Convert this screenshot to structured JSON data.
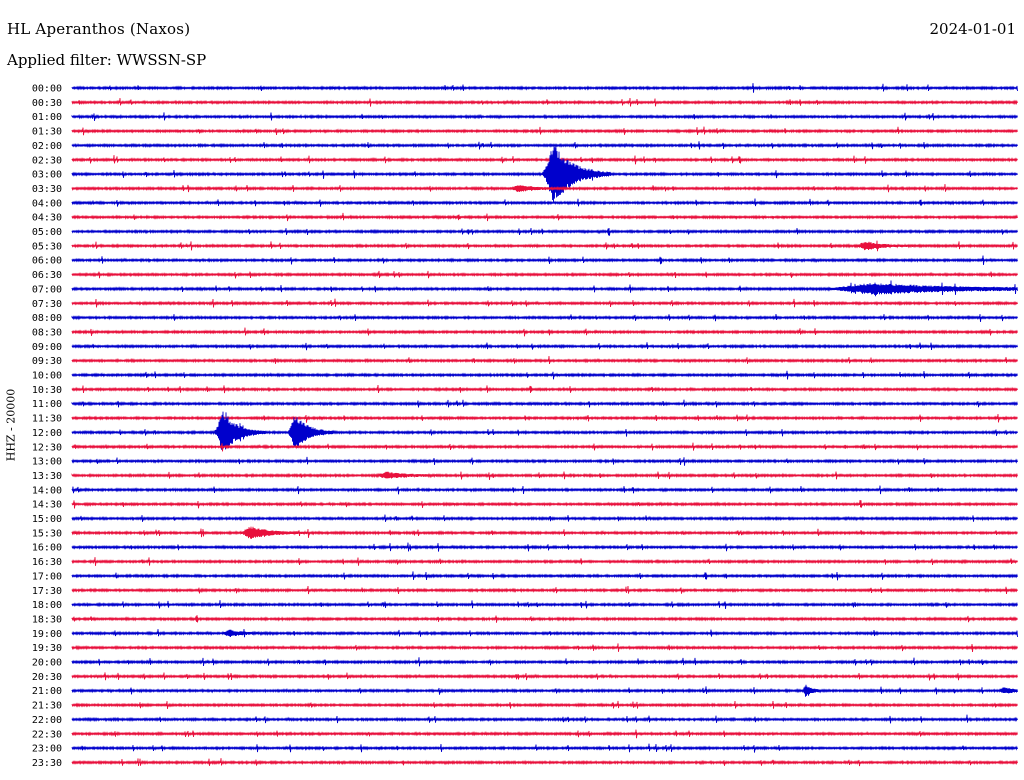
{
  "header": {
    "station": "HL Aperanthos (Naxos)",
    "filter": "Applied filter: WWSSN-SP",
    "date": "2024-01-01"
  },
  "chart_data": {
    "type": "line",
    "ylabel": "HHZ - 20000",
    "rows": [
      "00:00",
      "00:30",
      "01:00",
      "01:30",
      "02:00",
      "02:30",
      "03:00",
      "03:30",
      "04:00",
      "04:30",
      "05:00",
      "05:30",
      "06:00",
      "06:30",
      "07:00",
      "07:30",
      "08:00",
      "08:30",
      "09:00",
      "09:30",
      "10:00",
      "10:30",
      "11:00",
      "11:30",
      "12:00",
      "12:30",
      "13:00",
      "13:30",
      "14:00",
      "14:30",
      "15:00",
      "15:30",
      "16:00",
      "16:30",
      "17:00",
      "17:30",
      "18:00",
      "18:30",
      "19:00",
      "19:30",
      "20:00",
      "20:30",
      "21:00",
      "21:30",
      "22:00",
      "22:30",
      "23:00",
      "23:30"
    ],
    "colors": [
      "#0000cc",
      "#e8103c"
    ],
    "events": [
      {
        "row": "03:00",
        "minute": 15.3,
        "amplitude": 30,
        "duration_min": 1.2
      },
      {
        "row": "03:30",
        "minute": 14.2,
        "amplitude": 3,
        "duration_min": 1.0
      },
      {
        "row": "07:00",
        "minute": 25.5,
        "amplitude": 5,
        "duration_min": 6.0
      },
      {
        "row": "12:00",
        "minute": 4.8,
        "amplitude": 20,
        "duration_min": 0.9
      },
      {
        "row": "12:00",
        "minute": 7.1,
        "amplitude": 17,
        "duration_min": 0.8
      },
      {
        "row": "15:30",
        "minute": 5.7,
        "amplitude": 6,
        "duration_min": 1.2
      },
      {
        "row": "05:30",
        "minute": 25.2,
        "amplitude": 4,
        "duration_min": 1.0
      },
      {
        "row": "13:30",
        "minute": 10.0,
        "amplitude": 3,
        "duration_min": 1.2
      },
      {
        "row": "19:00",
        "minute": 5.0,
        "amplitude": 3,
        "duration_min": 0.8
      },
      {
        "row": "21:00",
        "minute": 23.3,
        "amplitude": 6,
        "duration_min": 0.3
      },
      {
        "row": "21:00",
        "minute": 29.6,
        "amplitude": 3,
        "duration_min": 0.5
      }
    ],
    "grid": false
  }
}
